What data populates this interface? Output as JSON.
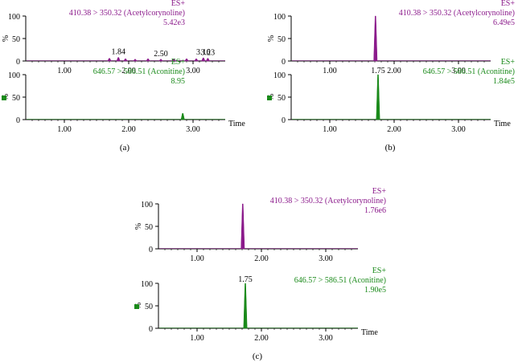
{
  "colors": {
    "acetylcorynoline": "#8b1a8b",
    "aconitine": "#1a8a1a",
    "axis": "#000000"
  },
  "panel_captions": [
    "(a)",
    "(b)",
    "(c)"
  ],
  "chart_data": [
    {
      "panel": "(a)",
      "type": "line",
      "title": "ES+",
      "transition": "410.38 > 350.32 (Acetylcorynoline)",
      "intensity": "5.42e3",
      "xlim": [
        0.4,
        3.5
      ],
      "ylim": [
        0,
        100
      ],
      "xticks": [
        "1.00",
        "2.00",
        "3.00"
      ],
      "yticks": [
        "0",
        "50",
        "100"
      ],
      "ylabel": "%",
      "xlabel": "",
      "peak_labels": [
        {
          "x": 1.84,
          "text": "1.84"
        },
        {
          "x": 2.5,
          "text": "2.50"
        },
        {
          "x": 3.16,
          "text": "3.16"
        },
        {
          "x": 3.23,
          "text": "3.23"
        }
      ],
      "peaks": [
        {
          "x": 1.7,
          "y": 6
        },
        {
          "x": 1.84,
          "y": 8
        },
        {
          "x": 1.95,
          "y": 5
        },
        {
          "x": 2.1,
          "y": 4
        },
        {
          "x": 2.3,
          "y": 5
        },
        {
          "x": 2.5,
          "y": 4
        },
        {
          "x": 2.7,
          "y": 4
        },
        {
          "x": 2.9,
          "y": 5
        },
        {
          "x": 3.05,
          "y": 5
        },
        {
          "x": 3.16,
          "y": 7
        },
        {
          "x": 3.23,
          "y": 6
        }
      ]
    },
    {
      "panel": "(a)",
      "type": "line",
      "title": "ES+",
      "transition": "646.57 > 586.51 (Aconitine)",
      "intensity": "8.95",
      "xlim": [
        0.4,
        3.5
      ],
      "ylim": [
        0,
        100
      ],
      "xticks": [
        "1.00",
        "2.00",
        "3.00"
      ],
      "yticks": [
        "0",
        "50",
        "100"
      ],
      "ylabel": "%",
      "xlabel": "Time",
      "peak_labels": [],
      "peaks": [
        {
          "x": 2.84,
          "y": 14
        }
      ]
    },
    {
      "panel": "(b)",
      "type": "line",
      "title": "ES+",
      "transition": "410.38 > 350.32 (Acetylcorynoline)",
      "intensity": "6.49e5",
      "xlim": [
        0.4,
        3.5
      ],
      "ylim": [
        0,
        100
      ],
      "xticks": [
        "1.00",
        "2.00",
        "3.00"
      ],
      "yticks": [
        "0",
        "50",
        "100"
      ],
      "ylabel": "%",
      "xlabel": "",
      "peak_labels": [],
      "peaks": [
        {
          "x": 1.71,
          "y": 100
        }
      ]
    },
    {
      "panel": "(b)",
      "type": "line",
      "title": "ES+",
      "transition": "646.57 > 586.51 (Aconitine)",
      "intensity": "1.84e5",
      "xlim": [
        0.4,
        3.5
      ],
      "ylim": [
        0,
        100
      ],
      "xticks": [
        "1.00",
        "2.00",
        "3.00"
      ],
      "yticks": [
        "0",
        "50",
        "100"
      ],
      "ylabel": "%",
      "xlabel": "Time",
      "peak_labels": [
        {
          "x": 1.75,
          "text": "1.75"
        }
      ],
      "peaks": [
        {
          "x": 1.75,
          "y": 100
        }
      ]
    },
    {
      "panel": "(c)",
      "type": "line",
      "title": "ES+",
      "transition": "410.38 > 350.32 (Acetylcorynoline)",
      "intensity": "1.76e6",
      "xlim": [
        0.4,
        3.5
      ],
      "ylim": [
        0,
        100
      ],
      "xticks": [
        "1.00",
        "2.00",
        "3.00"
      ],
      "yticks": [
        "0",
        "50",
        "100"
      ],
      "ylabel": "%",
      "xlabel": "",
      "peak_labels": [],
      "peaks": [
        {
          "x": 1.71,
          "y": 100
        }
      ]
    },
    {
      "panel": "(c)",
      "type": "line",
      "title": "ES+",
      "transition": "646.57 > 586.51 (Aconitine)",
      "intensity": "1.90e5",
      "xlim": [
        0.4,
        3.5
      ],
      "ylim": [
        0,
        100
      ],
      "xticks": [
        "1.00",
        "2.00",
        "3.00"
      ],
      "yticks": [
        "0",
        "50",
        "100"
      ],
      "ylabel": "%",
      "xlabel": "Time",
      "peak_labels": [
        {
          "x": 1.75,
          "text": "1.75"
        }
      ],
      "peaks": [
        {
          "x": 1.75,
          "y": 100
        }
      ]
    }
  ]
}
